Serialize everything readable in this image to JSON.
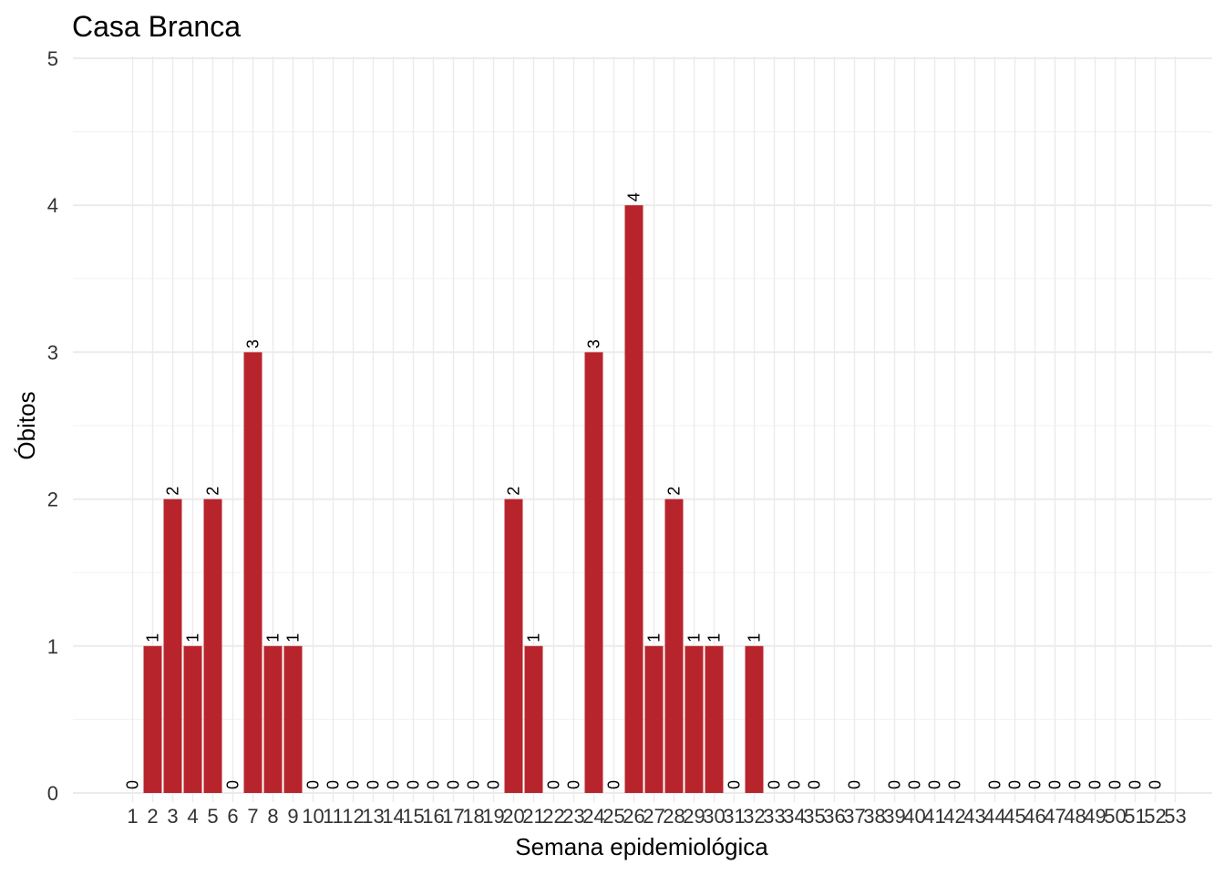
{
  "chart_data": {
    "type": "bar",
    "title": "Casa Branca",
    "xlabel": "Semana epidemiológica",
    "ylabel": "Óbitos",
    "ylim": [
      0,
      5
    ],
    "yticks": [
      0,
      1,
      2,
      3,
      4,
      5
    ],
    "categories": [
      "1",
      "2",
      "3",
      "4",
      "5",
      "6",
      "7",
      "8",
      "9",
      "10",
      "11",
      "12",
      "13",
      "14",
      "15",
      "16",
      "17",
      "18",
      "19",
      "20",
      "21",
      "22",
      "23",
      "24",
      "25",
      "26",
      "27",
      "28",
      "29",
      "30",
      "31",
      "32",
      "33",
      "34",
      "35",
      "36",
      "37",
      "38",
      "39",
      "40",
      "41",
      "42",
      "43",
      "44",
      "45",
      "46",
      "47",
      "48",
      "49",
      "50",
      "51",
      "52",
      "53"
    ],
    "values": [
      0,
      1,
      2,
      1,
      2,
      0,
      3,
      1,
      1,
      0,
      0,
      0,
      0,
      0,
      0,
      0,
      0,
      0,
      0,
      2,
      1,
      0,
      0,
      3,
      0,
      4,
      1,
      2,
      1,
      1,
      0,
      1,
      0,
      0,
      0,
      null,
      0,
      null,
      0,
      0,
      0,
      0,
      null,
      0,
      0,
      0,
      0,
      0,
      0,
      0,
      0,
      0,
      null
    ],
    "bar_color": "#B8242C",
    "grid": true,
    "data_labels": true,
    "legend": "none"
  }
}
